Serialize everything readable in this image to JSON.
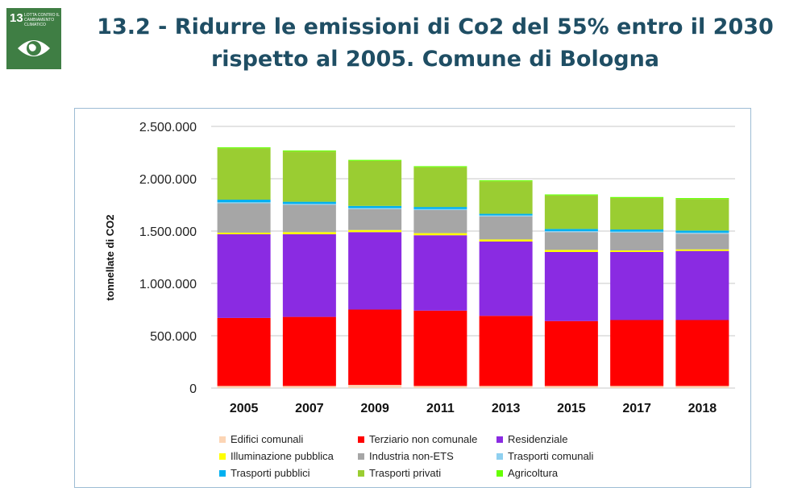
{
  "badge": {
    "number": "13",
    "text": "Lotta contro il cambiamento climatico",
    "icon": "eye-globe-icon",
    "color": "#3f7e44"
  },
  "title": {
    "line1": "13.2 - Ridurre le emissioni di Co2 del 55% entro il 2030",
    "line2": "rispetto al 2005. Comune di Bologna"
  },
  "chart_data": {
    "type": "bar",
    "stacked": true,
    "ylabel": "tonnellate di CO2",
    "ylim": [
      0,
      2500000
    ],
    "yticks": [
      0,
      500000,
      1000000,
      1500000,
      2000000,
      2500000
    ],
    "ytick_labels": [
      "0",
      "500.000",
      "1.000.000",
      "1.500.000",
      "2.000.000",
      "2.500.000"
    ],
    "grid": true,
    "legend_position": "bottom",
    "categories": [
      "2005",
      "2007",
      "2009",
      "2011",
      "2013",
      "2015",
      "2017",
      "2018"
    ],
    "series": [
      {
        "name": "Edifici comunali",
        "color": "#fcd5b5",
        "values": [
          20000,
          20000,
          30000,
          20000,
          20000,
          20000,
          20000,
          20000
        ]
      },
      {
        "name": "Terziario non comunale",
        "color": "#ff0000",
        "values": [
          650000,
          660000,
          720000,
          720000,
          670000,
          620000,
          630000,
          630000
        ]
      },
      {
        "name": "Residenziale",
        "color": "#8a2be2",
        "values": [
          800000,
          790000,
          740000,
          720000,
          710000,
          660000,
          650000,
          660000
        ]
      },
      {
        "name": "Illuminazione pubblica",
        "color": "#ffff00",
        "values": [
          15000,
          20000,
          20000,
          20000,
          20000,
          20000,
          15000,
          15000
        ]
      },
      {
        "name": "Industria non-ETS",
        "color": "#a6a6a6",
        "values": [
          280000,
          260000,
          200000,
          220000,
          220000,
          170000,
          170000,
          150000
        ]
      },
      {
        "name": "Trasporti comunali",
        "color": "#8fd0f0",
        "values": [
          10000,
          10000,
          10000,
          10000,
          10000,
          10000,
          10000,
          10000
        ]
      },
      {
        "name": "Trasporti pubblici",
        "color": "#00b0f0",
        "values": [
          25000,
          20000,
          20000,
          20000,
          15000,
          20000,
          20000,
          20000
        ]
      },
      {
        "name": "Trasporti privati",
        "color": "#9acd32",
        "values": [
          490000,
          480000,
          430000,
          380000,
          310000,
          320000,
          300000,
          300000
        ]
      },
      {
        "name": "Agricoltura",
        "color": "#66ff00",
        "values": [
          10000,
          10000,
          10000,
          10000,
          10000,
          10000,
          10000,
          10000
        ]
      }
    ]
  }
}
